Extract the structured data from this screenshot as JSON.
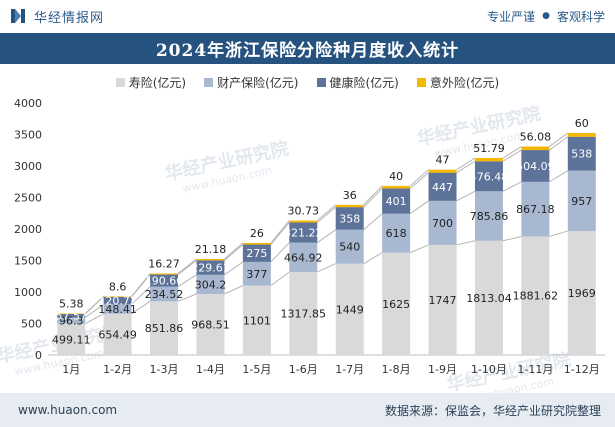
{
  "header": {
    "brand": "华经情报网",
    "slogan_left": "专业严谨",
    "slogan_sep": "●",
    "slogan_right": "客观科学"
  },
  "footer": {
    "website": "www.huaon.com",
    "source": "数据来源：保监会，华经产业研究院整理"
  },
  "watermark": "华经产业研究院",
  "watermark_url": "www.huaon.com",
  "colors": {
    "title_band": "#26527f",
    "life": "#d9d9d9",
    "property": "#a9b8d1",
    "health": "#5d7399",
    "accident": "#f5b700"
  },
  "chart_data": {
    "type": "bar",
    "stacked": true,
    "title": "2024年浙江保险分险种月度收入统计",
    "categories": [
      "1月",
      "1-2月",
      "1-3月",
      "1-4月",
      "1-5月",
      "1-6月",
      "1-7月",
      "1-8月",
      "1-9月",
      "1-10月",
      "1-11月",
      "1-12月"
    ],
    "ylim": [
      0,
      4000
    ],
    "yticks": [
      0,
      500,
      1000,
      1500,
      2000,
      2500,
      3000,
      3500,
      4000
    ],
    "grid": false,
    "legend_position": "top",
    "series": [
      {
        "name": "寿险(亿元)",
        "color": "#d9d9d9",
        "values": [
          499.11,
          654.49,
          851.86,
          968.51,
          1101,
          1317.85,
          1449,
          1625,
          1747,
          1813.04,
          1881.62,
          1969
        ],
        "labels": [
          "499.11",
          "654.49",
          "851.86",
          "968.51",
          "1101",
          "1317.85",
          "1449",
          "1625",
          "1747",
          "1813.04",
          "1881.62",
          "1969"
        ]
      },
      {
        "name": "财产保险(亿元)",
        "color": "#a9b8d1",
        "values": [
          96.3,
          148.41,
          234.52,
          304.2,
          377,
          464.92,
          540,
          618,
          700,
          785.86,
          867.18,
          957
        ],
        "labels": [
          "96.3",
          "148.41",
          "234.52",
          "304.2",
          "377",
          "464.92",
          "540",
          "618",
          "700",
          "785.86",
          "867.18",
          "957"
        ]
      },
      {
        "name": "健康险(亿元)",
        "color": "#5d7399",
        "values": [
          57.57,
          120.72,
          190.66,
          229.61,
          275,
          321.22,
          358,
          401,
          447,
          476.48,
          504.09,
          538
        ],
        "labels": [
          "57.57",
          "120.72",
          "190.66",
          "229.61",
          "275",
          "321.22",
          "358",
          "401",
          "447",
          "476.48",
          "504.09",
          "538"
        ]
      },
      {
        "name": "意外险(亿元)",
        "color": "#f5b700",
        "values": [
          5.38,
          8.6,
          16.27,
          21.18,
          26,
          30.73,
          36,
          40,
          47,
          51.79,
          56.08,
          60
        ],
        "labels": [
          "5.38",
          "8.6",
          "16.27",
          "21.18",
          "26",
          "30.73",
          "36",
          "40",
          "47",
          "51.79",
          "56.08",
          "60"
        ]
      }
    ]
  }
}
